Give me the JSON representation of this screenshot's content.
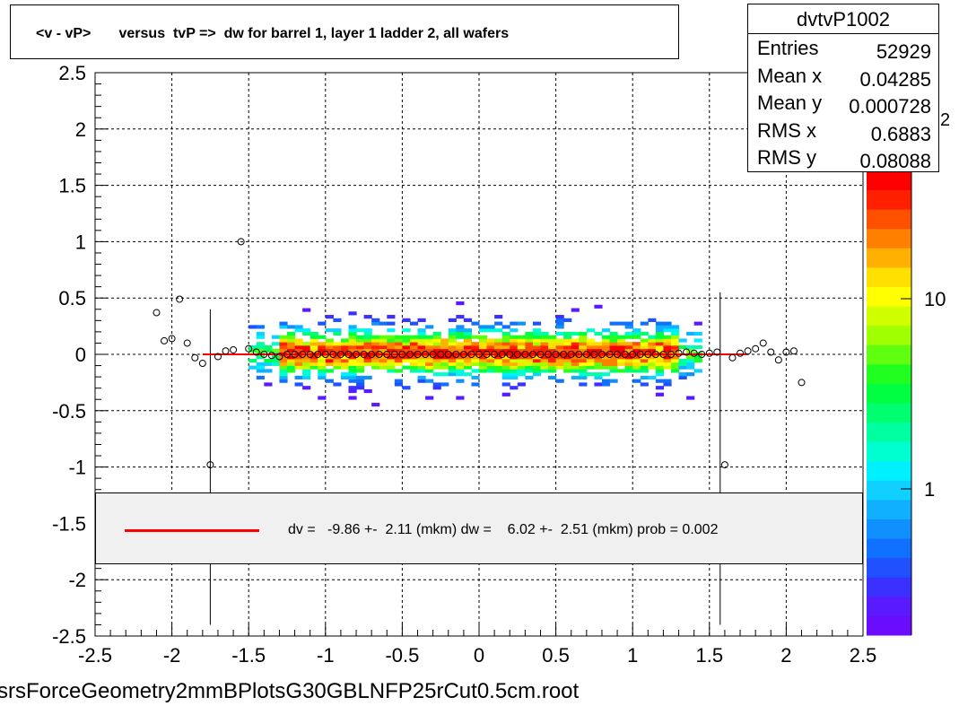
{
  "title": "<v - vP>       versus  tvP =>  dw for barrel 1, layer 1 ladder 2, all wafers",
  "stats": {
    "name": "dvtvP1002",
    "rows": [
      {
        "label": "Entries",
        "value": "52929"
      },
      {
        "label": "Mean x",
        "value": "0.04285"
      },
      {
        "label": "Mean y",
        "value": "0.000728"
      },
      {
        "label": "RMS x",
        "value": "0.6883"
      },
      {
        "label": "RMS y",
        "value": "0.08088"
      }
    ]
  },
  "fit_text": "dv =   -9.86 +-  2.11 (mkm) dw =    6.02 +-  2.51 (mkm) prob = 0.002",
  "fit_color": "#ff0000",
  "footer": "srsForceGeometry2mmBPlotsG30GBLNFP25rCut0.5cm.root",
  "palette_labels": [
    "10",
    "1"
  ],
  "palette_partial_label": "2",
  "chart_data": {
    "type": "heatmap",
    "xlim": [
      -2.5,
      2.5
    ],
    "ylim": [
      -2.5,
      2.5
    ],
    "x_ticks": [
      "-2.5",
      "-2",
      "-1.5",
      "-1",
      "-0.5",
      "0",
      "0.5",
      "1",
      "1.5",
      "2",
      "2.5"
    ],
    "y_ticks": [
      "-2.5",
      "-2",
      "-1.5",
      "-1",
      "-0.5",
      "0",
      "0.5",
      "1",
      "1.5",
      "2",
      "2.5"
    ],
    "grid": true,
    "z_scale": "log",
    "profile_points": [
      {
        "x": -2.1,
        "y": 0.37
      },
      {
        "x": -2.05,
        "y": 0.12
      },
      {
        "x": -2.0,
        "y": 0.14
      },
      {
        "x": -1.95,
        "y": 0.49
      },
      {
        "x": -1.9,
        "y": 0.1
      },
      {
        "x": -1.85,
        "y": -0.03
      },
      {
        "x": -1.8,
        "y": -0.08
      },
      {
        "x": -1.75,
        "y": -0.98
      },
      {
        "x": -1.7,
        "y": -0.02
      },
      {
        "x": -1.65,
        "y": 0.03
      },
      {
        "x": -1.6,
        "y": 0.04
      },
      {
        "x": -1.55,
        "y": 1.0
      },
      {
        "x": -1.5,
        "y": 0.05
      },
      {
        "x": -1.45,
        "y": 0.02
      },
      {
        "x": -1.4,
        "y": 0.0
      },
      {
        "x": -1.35,
        "y": -0.01
      },
      {
        "x": -1.3,
        "y": -0.02
      },
      {
        "x": -1.25,
        "y": 0.0
      },
      {
        "x": -1.2,
        "y": 0.0
      },
      {
        "x": -1.15,
        "y": 0.0
      },
      {
        "x": -1.1,
        "y": 0.0
      },
      {
        "x": -1.05,
        "y": 0.0
      },
      {
        "x": -1.0,
        "y": 0.0
      },
      {
        "x": -0.95,
        "y": 0.0
      },
      {
        "x": -0.9,
        "y": 0.0
      },
      {
        "x": -0.85,
        "y": 0.0
      },
      {
        "x": -0.8,
        "y": 0.0
      },
      {
        "x": -0.75,
        "y": 0.0
      },
      {
        "x": -0.7,
        "y": 0.0
      },
      {
        "x": -0.65,
        "y": 0.0
      },
      {
        "x": -0.6,
        "y": 0.0
      },
      {
        "x": -0.55,
        "y": 0.0
      },
      {
        "x": -0.5,
        "y": 0.0
      },
      {
        "x": -0.45,
        "y": 0.0
      },
      {
        "x": -0.4,
        "y": 0.0
      },
      {
        "x": -0.35,
        "y": 0.0
      },
      {
        "x": -0.3,
        "y": 0.0
      },
      {
        "x": -0.25,
        "y": 0.0
      },
      {
        "x": -0.2,
        "y": 0.0
      },
      {
        "x": -0.15,
        "y": 0.0
      },
      {
        "x": -0.1,
        "y": 0.0
      },
      {
        "x": -0.05,
        "y": 0.0
      },
      {
        "x": 0.0,
        "y": 0.0
      },
      {
        "x": 0.05,
        "y": 0.0
      },
      {
        "x": 0.1,
        "y": 0.0
      },
      {
        "x": 0.15,
        "y": 0.0
      },
      {
        "x": 0.2,
        "y": 0.0
      },
      {
        "x": 0.25,
        "y": 0.0
      },
      {
        "x": 0.3,
        "y": 0.0
      },
      {
        "x": 0.35,
        "y": 0.0
      },
      {
        "x": 0.4,
        "y": 0.0
      },
      {
        "x": 0.45,
        "y": 0.0
      },
      {
        "x": 0.5,
        "y": 0.0
      },
      {
        "x": 0.55,
        "y": 0.0
      },
      {
        "x": 0.6,
        "y": 0.0
      },
      {
        "x": 0.65,
        "y": 0.0
      },
      {
        "x": 0.7,
        "y": 0.0
      },
      {
        "x": 0.75,
        "y": 0.0
      },
      {
        "x": 0.8,
        "y": 0.0
      },
      {
        "x": 0.85,
        "y": 0.0
      },
      {
        "x": 0.9,
        "y": 0.0
      },
      {
        "x": 0.95,
        "y": 0.0
      },
      {
        "x": 1.0,
        "y": 0.0
      },
      {
        "x": 1.05,
        "y": 0.0
      },
      {
        "x": 1.1,
        "y": 0.0
      },
      {
        "x": 1.15,
        "y": 0.0
      },
      {
        "x": 1.2,
        "y": 0.0
      },
      {
        "x": 1.25,
        "y": 0.0
      },
      {
        "x": 1.3,
        "y": 0.01
      },
      {
        "x": 1.35,
        "y": 0.02
      },
      {
        "x": 1.4,
        "y": 0.01
      },
      {
        "x": 1.45,
        "y": 0.0
      },
      {
        "x": 1.5,
        "y": 0.01
      },
      {
        "x": 1.55,
        "y": 0.02
      },
      {
        "x": 1.6,
        "y": -0.98
      },
      {
        "x": 1.65,
        "y": -0.03
      },
      {
        "x": 1.7,
        "y": 0.01
      },
      {
        "x": 1.75,
        "y": 0.03
      },
      {
        "x": 1.8,
        "y": 0.05
      },
      {
        "x": 1.85,
        "y": 0.1
      },
      {
        "x": 1.9,
        "y": 0.02
      },
      {
        "x": 1.95,
        "y": -0.05
      },
      {
        "x": 2.0,
        "y": 0.02
      },
      {
        "x": 2.05,
        "y": 0.03
      },
      {
        "x": 2.1,
        "y": -0.25
      }
    ],
    "error_bars": [
      {
        "x": -1.75,
        "y_low": -2.4,
        "y_high": 0.4
      },
      {
        "x": 1.57,
        "y_low": -2.4,
        "y_high": 0.55
      }
    ],
    "fit_line": {
      "x1": -1.8,
      "x2": 1.75,
      "y": 0.0
    }
  }
}
